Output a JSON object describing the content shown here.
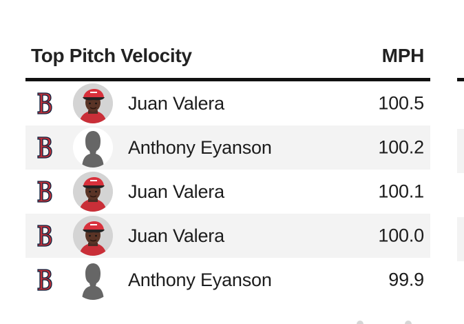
{
  "leaderboard": {
    "title": "Top Pitch Velocity",
    "column_header": "MPH",
    "rows": [
      {
        "team_logo_icon": "red-sox-b-logo-icon",
        "player_photo": "player-headshot",
        "player": "Juan Valera",
        "mph": "100.5"
      },
      {
        "team_logo_icon": "red-sox-b-logo-icon",
        "player_photo": "player-silhouette-icon",
        "player": "Anthony Eyanson",
        "mph": "100.2"
      },
      {
        "team_logo_icon": "red-sox-b-logo-icon",
        "player_photo": "player-headshot",
        "player": "Juan Valera",
        "mph": "100.1"
      },
      {
        "team_logo_icon": "red-sox-b-logo-icon",
        "player_photo": "player-headshot",
        "player": "Juan Valera",
        "mph": "100.0"
      },
      {
        "team_logo_icon": "red-sox-b-logo-icon",
        "player_photo": "player-silhouette-icon",
        "player": "Anthony Eyanson",
        "mph": "99.9"
      }
    ]
  },
  "colors": {
    "team_red": "#bd3039",
    "team_navy": "#0c2340",
    "header_rule": "#111111",
    "row_shade": "#f3f3f3"
  }
}
